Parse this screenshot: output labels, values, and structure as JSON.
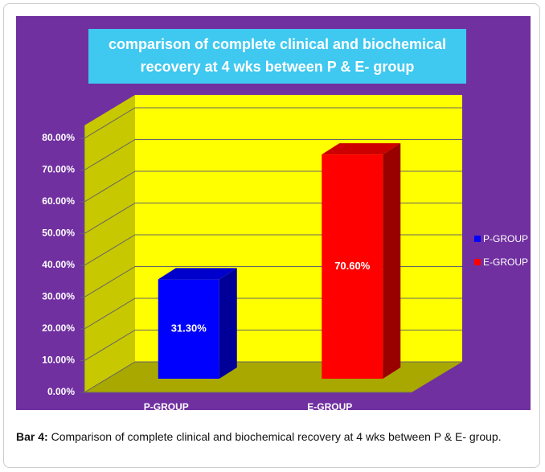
{
  "chart_data": {
    "type": "bar3d",
    "title": [
      "comparison of complete clinical and biochemical",
      "recovery at 4 wks between P & E- group"
    ],
    "categories": [
      "P-GROUP",
      "E-GROUP"
    ],
    "values": [
      31.3,
      70.6
    ],
    "value_labels": [
      "31.30%",
      "70.60%"
    ],
    "colors": [
      "#0000ff",
      "#ff0000"
    ],
    "ylim": [
      0,
      80
    ],
    "yticks": [
      {
        "value": 0,
        "label": "0.00%"
      },
      {
        "value": 10,
        "label": "10.00%"
      },
      {
        "value": 20,
        "label": "20.00%"
      },
      {
        "value": 30,
        "label": "30.00%"
      },
      {
        "value": 40,
        "label": "40.00%"
      },
      {
        "value": 50,
        "label": "50.00%"
      },
      {
        "value": 60,
        "label": "60.00%"
      },
      {
        "value": 70,
        "label": "70.00%"
      },
      {
        "value": 80,
        "label": "80.00%"
      }
    ],
    "grid": true,
    "legend": "right"
  },
  "caption": {
    "label": "Bar 4:",
    "text": "Comparison of complete clinical and biochemical recovery at 4 wks between P & E- group."
  }
}
